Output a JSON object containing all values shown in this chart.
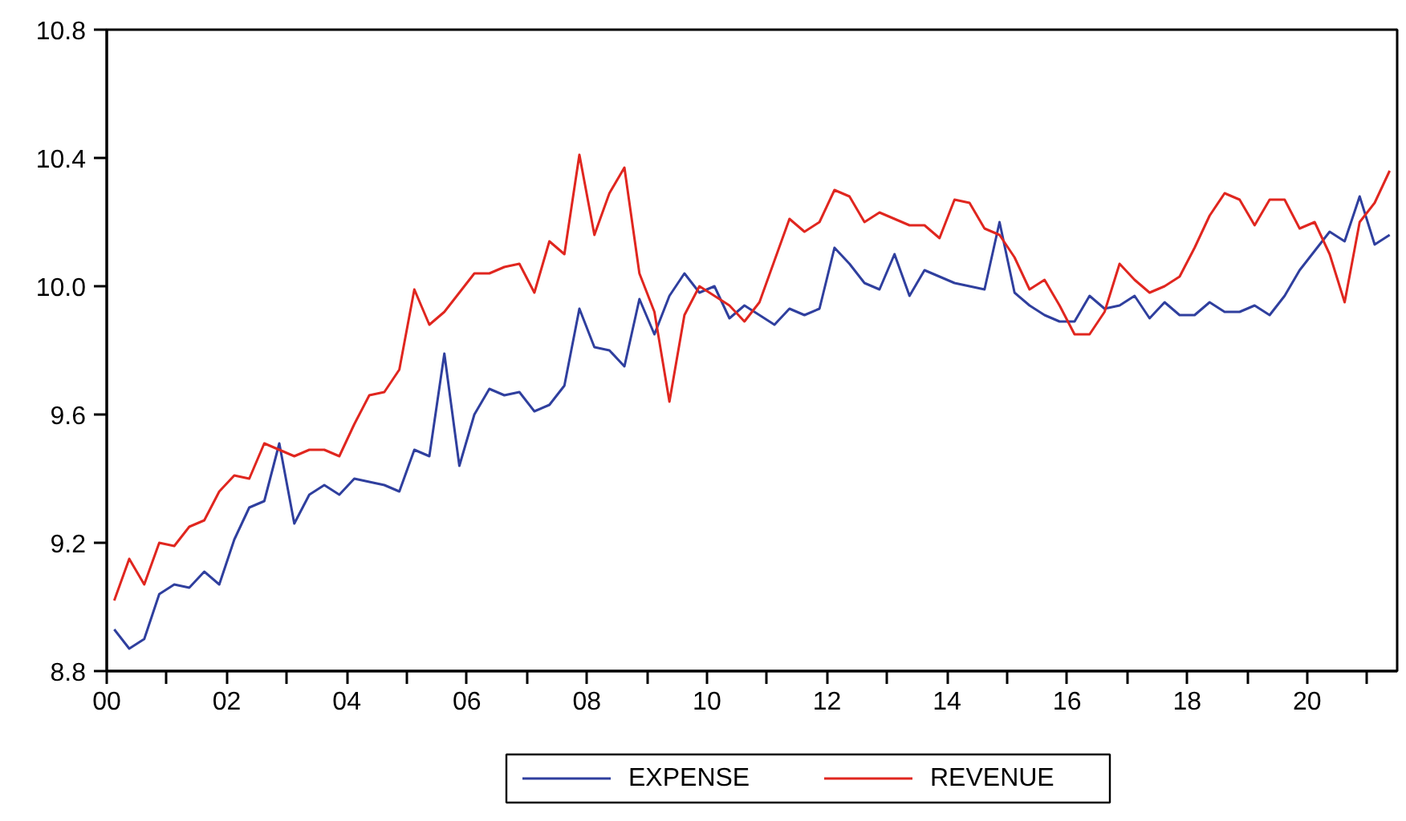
{
  "chart_data": {
    "type": "line",
    "x": [
      2000.125,
      2000.375,
      2000.625,
      2000.875,
      2001.125,
      2001.375,
      2001.625,
      2001.875,
      2002.125,
      2002.375,
      2002.625,
      2002.875,
      2003.125,
      2003.375,
      2003.625,
      2003.875,
      2004.125,
      2004.375,
      2004.625,
      2004.875,
      2005.125,
      2005.375,
      2005.625,
      2005.875,
      2006.125,
      2006.375,
      2006.625,
      2006.875,
      2007.125,
      2007.375,
      2007.625,
      2007.875,
      2008.125,
      2008.375,
      2008.625,
      2008.875,
      2009.125,
      2009.375,
      2009.625,
      2009.875,
      2010.125,
      2010.375,
      2010.625,
      2010.875,
      2011.125,
      2011.375,
      2011.625,
      2011.875,
      2012.125,
      2012.375,
      2012.625,
      2012.875,
      2013.125,
      2013.375,
      2013.625,
      2013.875,
      2014.125,
      2014.375,
      2014.625,
      2014.875,
      2015.125,
      2015.375,
      2015.625,
      2015.875,
      2016.125,
      2016.375,
      2016.625,
      2016.875,
      2017.125,
      2017.375,
      2017.625,
      2017.875,
      2018.125,
      2018.375,
      2018.625,
      2018.875,
      2019.125,
      2019.375,
      2019.625,
      2019.875,
      2020.125,
      2020.375,
      2020.625,
      2020.875,
      2021.125,
      2021.375
    ],
    "series": [
      {
        "name": "EXPENSE",
        "color": "#2f3f9e",
        "values": [
          8.93,
          8.87,
          8.9,
          9.04,
          9.07,
          9.06,
          9.11,
          9.07,
          9.21,
          9.31,
          9.33,
          9.51,
          9.26,
          9.35,
          9.38,
          9.35,
          9.4,
          9.39,
          9.38,
          9.36,
          9.49,
          9.47,
          9.79,
          9.44,
          9.6,
          9.68,
          9.66,
          9.67,
          9.61,
          9.63,
          9.69,
          9.93,
          9.81,
          9.8,
          9.75,
          9.96,
          9.85,
          9.97,
          10.04,
          9.98,
          10.0,
          9.9,
          9.94,
          9.91,
          9.88,
          9.93,
          9.91,
          9.93,
          10.12,
          10.07,
          10.01,
          9.99,
          10.1,
          9.97,
          10.05,
          10.03,
          10.01,
          10.0,
          9.99,
          10.2,
          9.98,
          9.94,
          9.91,
          9.89,
          9.89,
          9.97,
          9.93,
          9.94,
          9.97,
          9.9,
          9.95,
          9.91,
          9.91,
          9.95,
          9.92,
          9.92,
          9.94,
          9.91,
          9.97,
          10.05,
          10.11,
          10.17,
          10.14,
          10.28,
          10.13,
          10.16
        ]
      },
      {
        "name": "REVENUE",
        "color": "#e0261f",
        "values": [
          9.02,
          9.15,
          9.07,
          9.2,
          9.19,
          9.25,
          9.27,
          9.36,
          9.41,
          9.4,
          9.51,
          9.49,
          9.47,
          9.49,
          9.49,
          9.47,
          9.57,
          9.66,
          9.67,
          9.74,
          9.99,
          9.88,
          9.92,
          9.98,
          10.04,
          10.04,
          10.06,
          10.07,
          9.98,
          10.14,
          10.1,
          10.41,
          10.16,
          10.29,
          10.37,
          10.04,
          9.92,
          9.64,
          9.91,
          10.0,
          9.97,
          9.94,
          9.89,
          9.95,
          10.08,
          10.21,
          10.17,
          10.2,
          10.3,
          10.28,
          10.2,
          10.23,
          10.21,
          10.19,
          10.19,
          10.15,
          10.27,
          10.26,
          10.18,
          10.16,
          10.09,
          9.99,
          10.02,
          9.94,
          9.85,
          9.85,
          9.92,
          10.07,
          10.02,
          9.98,
          10.0,
          10.03,
          10.12,
          10.22,
          10.29,
          10.27,
          10.19,
          10.27,
          10.27,
          10.18,
          10.2,
          10.1,
          9.95,
          10.2,
          10.26,
          10.36
        ]
      }
    ],
    "xlim": [
      2000,
      2021.5
    ],
    "xticks": [
      {
        "value": 2000,
        "label": "00"
      },
      {
        "value": 2001,
        "label": null
      },
      {
        "value": 2002,
        "label": "02"
      },
      {
        "value": 2003,
        "label": null
      },
      {
        "value": 2004,
        "label": "04"
      },
      {
        "value": 2005,
        "label": null
      },
      {
        "value": 2006,
        "label": "06"
      },
      {
        "value": 2007,
        "label": null
      },
      {
        "value": 2008,
        "label": "08"
      },
      {
        "value": 2009,
        "label": null
      },
      {
        "value": 2010,
        "label": "10"
      },
      {
        "value": 2011,
        "label": null
      },
      {
        "value": 2012,
        "label": "12"
      },
      {
        "value": 2013,
        "label": null
      },
      {
        "value": 2014,
        "label": "14"
      },
      {
        "value": 2015,
        "label": null
      },
      {
        "value": 2016,
        "label": "16"
      },
      {
        "value": 2017,
        "label": null
      },
      {
        "value": 2018,
        "label": "18"
      },
      {
        "value": 2019,
        "label": null
      },
      {
        "value": 2020,
        "label": "20"
      },
      {
        "value": 2021,
        "label": null
      }
    ],
    "ylim": [
      8.8,
      10.8
    ],
    "yticks": [
      {
        "value": 8.8,
        "label": "8.8"
      },
      {
        "value": 9.2,
        "label": "9.2"
      },
      {
        "value": 9.6,
        "label": "9.6"
      },
      {
        "value": 10.0,
        "label": "10.0"
      },
      {
        "value": 10.4,
        "label": "10.4"
      },
      {
        "value": 10.8,
        "label": "10.8"
      }
    ],
    "grid": false,
    "legend": "bottom",
    "line_style": "solid"
  }
}
